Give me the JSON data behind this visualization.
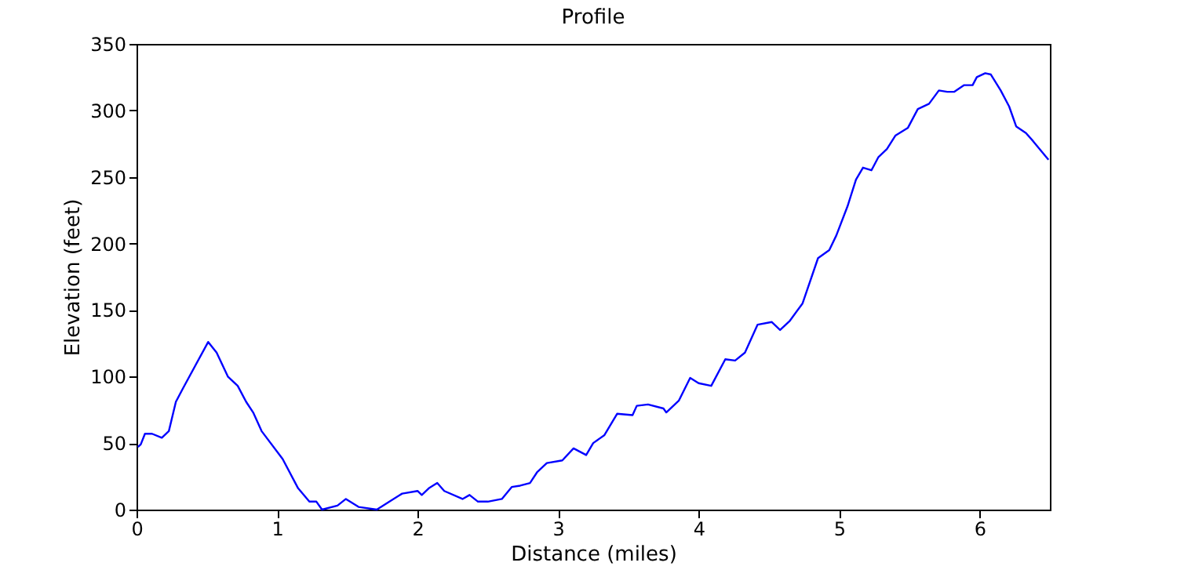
{
  "chart_data": {
    "type": "line",
    "title": "Profile",
    "xlabel": "Distance (miles)",
    "ylabel": "Elevation (feet)",
    "xlim": [
      0,
      6.5
    ],
    "xticks": [
      0,
      1,
      2,
      3,
      4,
      5,
      6
    ],
    "ylim": [
      0,
      350
    ],
    "yticks": [
      0,
      50,
      100,
      150,
      200,
      250,
      300,
      350
    ],
    "grid": false,
    "line_style": "solid",
    "marker": "none",
    "series": [
      {
        "color": "#0000ff",
        "x": [
          0.01,
          0.03,
          0.06,
          0.11,
          0.18,
          0.23,
          0.28,
          0.33,
          0.51,
          0.57,
          0.65,
          0.72,
          0.78,
          0.83,
          0.89,
          1.04,
          1.15,
          1.23,
          1.28,
          1.32,
          1.43,
          1.49,
          1.58,
          1.71,
          1.8,
          1.89,
          2.0,
          2.03,
          2.08,
          2.14,
          2.19,
          2.32,
          2.37,
          2.43,
          2.5,
          2.6,
          2.67,
          2.73,
          2.8,
          2.85,
          2.92,
          3.03,
          3.11,
          3.2,
          3.25,
          3.33,
          3.42,
          3.53,
          3.56,
          3.64,
          3.75,
          3.77,
          3.86,
          3.94,
          4.0,
          4.09,
          4.19,
          4.26,
          4.33,
          4.42,
          4.52,
          4.58,
          4.65,
          4.74,
          4.85,
          4.93,
          4.98,
          5.06,
          5.12,
          5.17,
          5.23,
          5.28,
          5.34,
          5.4,
          5.49,
          5.56,
          5.64,
          5.71,
          5.77,
          5.82,
          5.89,
          5.95,
          5.98,
          6.04,
          6.08,
          6.15,
          6.21,
          6.26,
          6.33,
          6.38,
          6.49
        ],
        "values": [
          47,
          49,
          57,
          57,
          54,
          59,
          81,
          91,
          126,
          118,
          100,
          93,
          81,
          73,
          59,
          38,
          16,
          6,
          6,
          0,
          3,
          8,
          2,
          0,
          6,
          12,
          14,
          11,
          16,
          20,
          14,
          8,
          11,
          6,
          6,
          8,
          17,
          18,
          20,
          28,
          35,
          37,
          46,
          41,
          50,
          56,
          72,
          71,
          78,
          79,
          76,
          73,
          82,
          99,
          95,
          93,
          113,
          112,
          118,
          139,
          141,
          135,
          142,
          155,
          189,
          195,
          206,
          228,
          248,
          257,
          255,
          265,
          271,
          281,
          287,
          301,
          305,
          315,
          314,
          314,
          319,
          319,
          325,
          328,
          327,
          315,
          303,
          288,
          283,
          277,
          263
        ]
      }
    ]
  }
}
